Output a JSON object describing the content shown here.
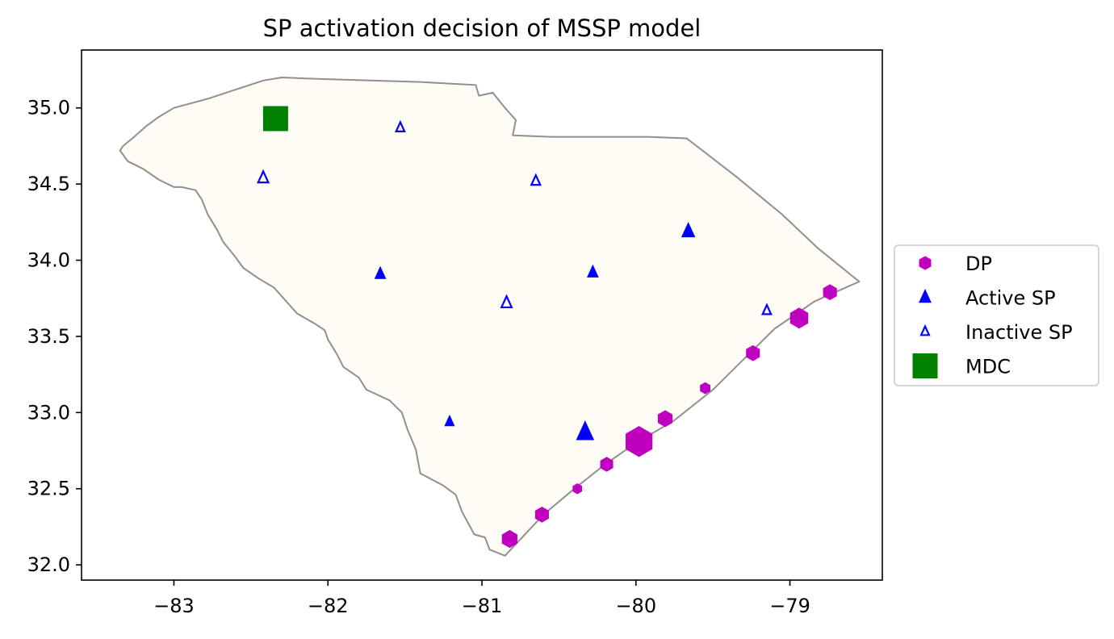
{
  "chart_data": {
    "type": "scatter",
    "title": "SP activation decision of MSSP model",
    "xlabel": "",
    "ylabel": "",
    "xlim": [
      -83.6,
      -78.4
    ],
    "ylim": [
      31.9,
      35.38
    ],
    "xticks": [
      -83,
      -82,
      -81,
      -80,
      -79
    ],
    "xtick_labels": [
      "−83",
      "−82",
      "−81",
      "−80",
      "−79"
    ],
    "yticks": [
      32.0,
      32.5,
      33.0,
      33.5,
      34.0,
      34.5,
      35.0
    ],
    "ytick_labels": [
      "32.0",
      "32.5",
      "33.0",
      "33.5",
      "34.0",
      "34.5",
      "35.0"
    ],
    "grid": false,
    "legend_position": "center-right outside",
    "boundary": {
      "fill": "#fffbf5",
      "stroke": "#909090",
      "points": [
        [
          -80.85,
          32.06
        ],
        [
          -80.95,
          32.1
        ],
        [
          -80.98,
          32.18
        ],
        [
          -81.05,
          32.2
        ],
        [
          -81.13,
          32.35
        ],
        [
          -81.17,
          32.46
        ],
        [
          -81.25,
          32.52
        ],
        [
          -81.4,
          32.6
        ],
        [
          -81.43,
          32.76
        ],
        [
          -81.48,
          32.88
        ],
        [
          -81.52,
          33.0
        ],
        [
          -81.6,
          33.08
        ],
        [
          -81.75,
          33.15
        ],
        [
          -81.8,
          33.23
        ],
        [
          -81.9,
          33.3
        ],
        [
          -81.94,
          33.38
        ],
        [
          -82.0,
          33.48
        ],
        [
          -82.02,
          33.54
        ],
        [
          -82.08,
          33.58
        ],
        [
          -82.2,
          33.65
        ],
        [
          -82.28,
          33.74
        ],
        [
          -82.35,
          33.82
        ],
        [
          -82.45,
          33.88
        ],
        [
          -82.55,
          33.95
        ],
        [
          -82.6,
          34.02
        ],
        [
          -82.68,
          34.12
        ],
        [
          -82.72,
          34.2
        ],
        [
          -82.78,
          34.3
        ],
        [
          -82.82,
          34.4
        ],
        [
          -82.86,
          34.46
        ],
        [
          -82.95,
          34.48
        ],
        [
          -83.0,
          34.48
        ],
        [
          -83.1,
          34.53
        ],
        [
          -83.2,
          34.6
        ],
        [
          -83.3,
          34.65
        ],
        [
          -83.35,
          34.72
        ],
        [
          -83.33,
          34.75
        ],
        [
          -83.27,
          34.8
        ],
        [
          -83.18,
          34.88
        ],
        [
          -83.1,
          34.94
        ],
        [
          -83.0,
          35.0
        ],
        [
          -82.78,
          35.06
        ],
        [
          -82.6,
          35.12
        ],
        [
          -82.42,
          35.18
        ],
        [
          -82.3,
          35.2
        ],
        [
          -82.05,
          35.19
        ],
        [
          -81.4,
          35.17
        ],
        [
          -81.04,
          35.15
        ],
        [
          -81.02,
          35.08
        ],
        [
          -80.93,
          35.1
        ],
        [
          -80.85,
          35.0
        ],
        [
          -80.78,
          34.92
        ],
        [
          -80.8,
          34.82
        ],
        [
          -80.55,
          34.81
        ],
        [
          -79.92,
          34.81
        ],
        [
          -79.67,
          34.8
        ],
        [
          -79.35,
          34.55
        ],
        [
          -79.05,
          34.3
        ],
        [
          -78.82,
          34.08
        ],
        [
          -78.55,
          33.86
        ],
        [
          -78.84,
          33.73
        ],
        [
          -79.1,
          33.55
        ],
        [
          -79.25,
          33.4
        ],
        [
          -79.5,
          33.15
        ],
        [
          -79.75,
          32.95
        ],
        [
          -80.0,
          32.8
        ],
        [
          -80.2,
          32.66
        ],
        [
          -80.4,
          32.5
        ],
        [
          -80.6,
          32.33
        ],
        [
          -80.85,
          32.06
        ]
      ]
    },
    "series": [
      {
        "name": "DP",
        "marker": "hexagon",
        "color": "#bf00bf",
        "points": [
          {
            "x": -79.98,
            "y": 32.81,
            "size": 3.0
          },
          {
            "x": -78.94,
            "y": 33.62,
            "size": 2.0
          },
          {
            "x": -80.82,
            "y": 32.17,
            "size": 1.7
          },
          {
            "x": -80.61,
            "y": 32.33,
            "size": 1.5
          },
          {
            "x": -80.19,
            "y": 32.66,
            "size": 1.4
          },
          {
            "x": -79.81,
            "y": 32.96,
            "size": 1.6
          },
          {
            "x": -79.24,
            "y": 33.39,
            "size": 1.5
          },
          {
            "x": -78.74,
            "y": 33.79,
            "size": 1.5
          },
          {
            "x": -79.55,
            "y": 33.16,
            "size": 1.1
          },
          {
            "x": -80.38,
            "y": 32.5,
            "size": 1.0
          }
        ]
      },
      {
        "name": "Active SP",
        "marker": "triangle",
        "color": "#0000ff",
        "filled": true,
        "points": [
          {
            "x": -80.33,
            "y": 32.87,
            "size": 1.9
          },
          {
            "x": -79.66,
            "y": 34.19,
            "size": 1.45
          },
          {
            "x": -81.66,
            "y": 33.91,
            "size": 1.2
          },
          {
            "x": -80.28,
            "y": 33.92,
            "size": 1.2
          },
          {
            "x": -81.21,
            "y": 32.94,
            "size": 1.05
          }
        ]
      },
      {
        "name": "Inactive SP",
        "marker": "triangle",
        "color": "#0000ff",
        "filled": false,
        "points": [
          {
            "x": -82.42,
            "y": 34.54,
            "size": 1.15
          },
          {
            "x": -80.84,
            "y": 33.72,
            "size": 1.15
          },
          {
            "x": -80.65,
            "y": 34.52,
            "size": 1.0
          },
          {
            "x": -81.53,
            "y": 34.87,
            "size": 0.95
          },
          {
            "x": -79.15,
            "y": 33.67,
            "size": 0.95
          }
        ]
      },
      {
        "name": "MDC",
        "marker": "square",
        "color": "#008000",
        "points": [
          {
            "x": -82.34,
            "y": 34.93,
            "size": 1.0
          }
        ]
      }
    ]
  }
}
